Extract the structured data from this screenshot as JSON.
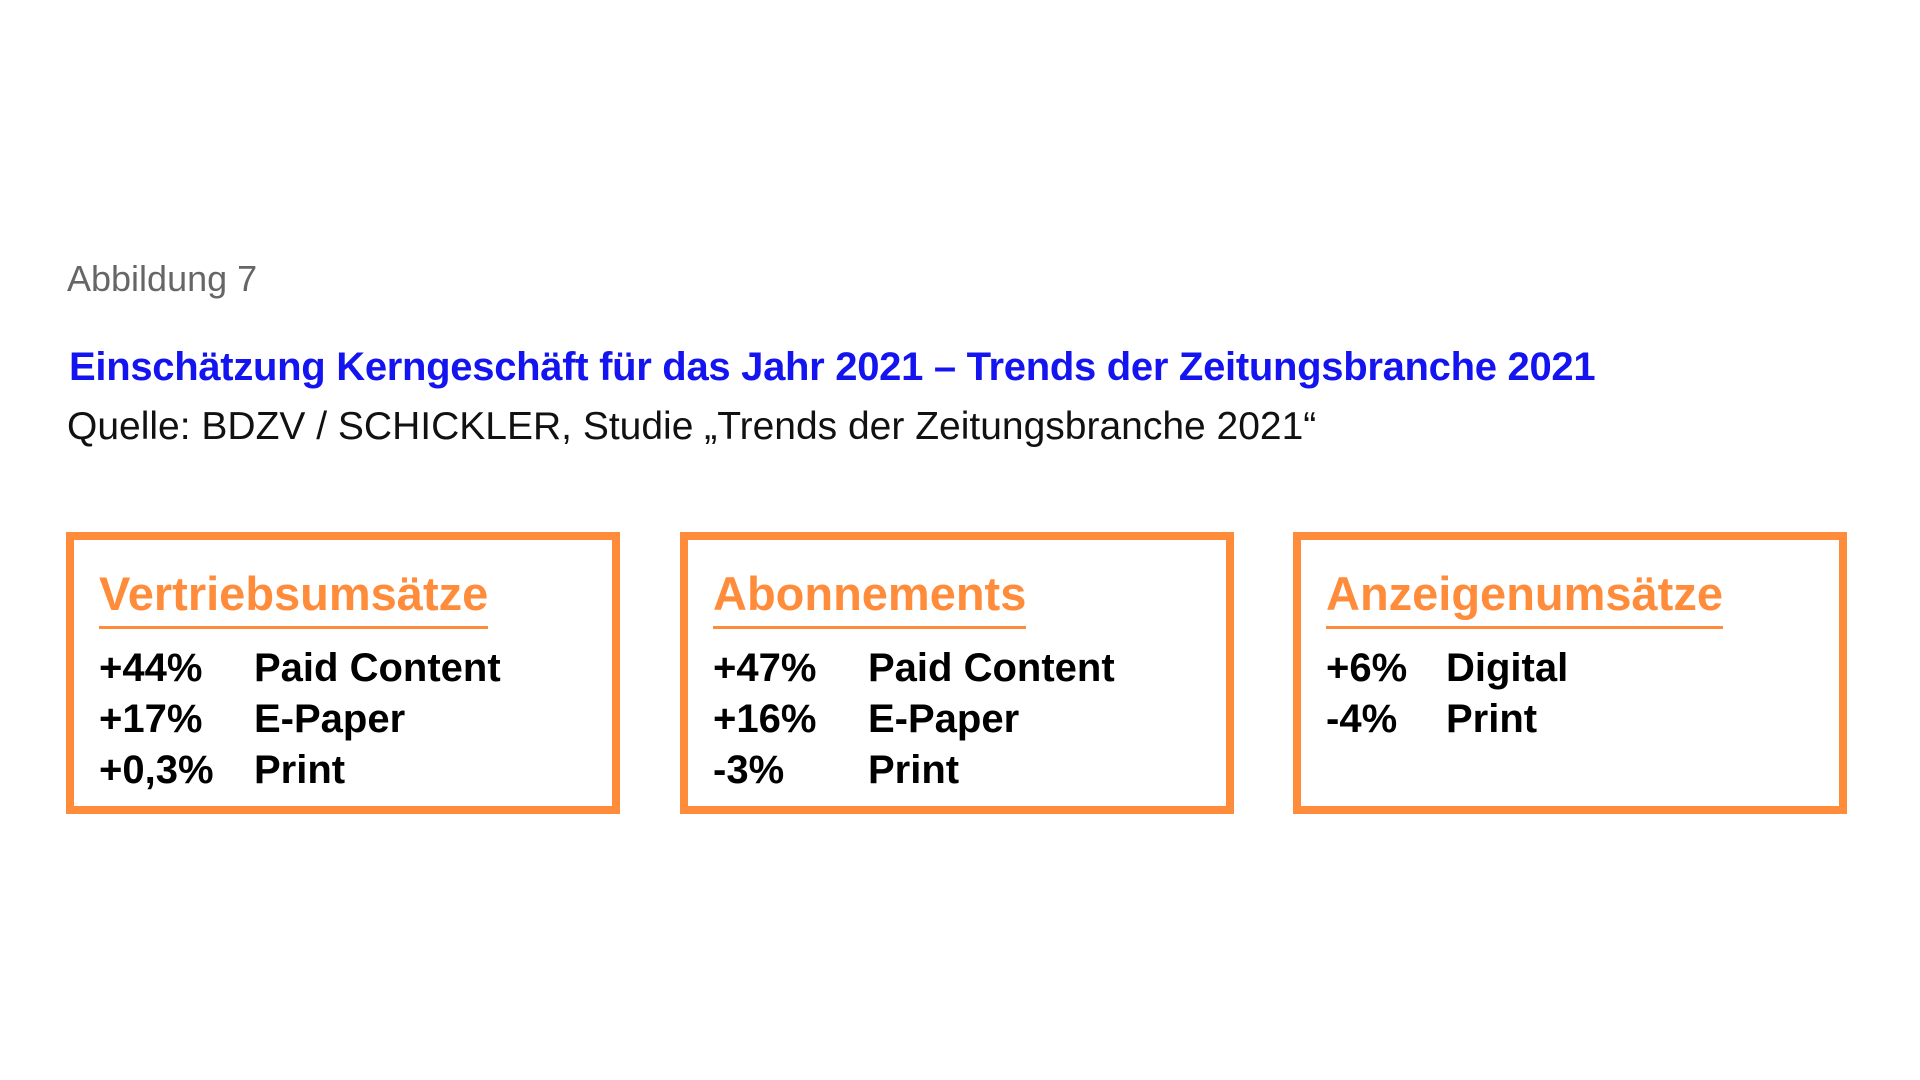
{
  "figure_label": "Abbildung 7",
  "title": "Einschätzung Kerngeschäft für das Jahr 2021 – Trends der Zeitungsbranche 2021",
  "source": "Quelle: BDZV / SCHICKLER, Studie „Trends der Zeitungsbranche 2021“",
  "colors": {
    "accent": "#ff8c3a",
    "title": "#1414f0",
    "text": "#000000"
  },
  "boxes": [
    {
      "heading": "Vertriebsumsätze",
      "rows": [
        {
          "pct": "+44%",
          "label": "Paid Content"
        },
        {
          "pct": "+17%",
          "label": "E-Paper"
        },
        {
          "pct": "+0,3%",
          "label": "Print"
        }
      ]
    },
    {
      "heading": "Abonnements",
      "rows": [
        {
          "pct": "+47%",
          "label": "Paid Content"
        },
        {
          "pct": "+16%",
          "label": "E-Paper"
        },
        {
          "pct": "-3%",
          "label": "Print"
        }
      ]
    },
    {
      "heading": "Anzeigenumsätze",
      "rows": [
        {
          "pct": "+6%",
          "label": "Digital"
        },
        {
          "pct": "-4%",
          "label": "Print"
        }
      ]
    }
  ]
}
